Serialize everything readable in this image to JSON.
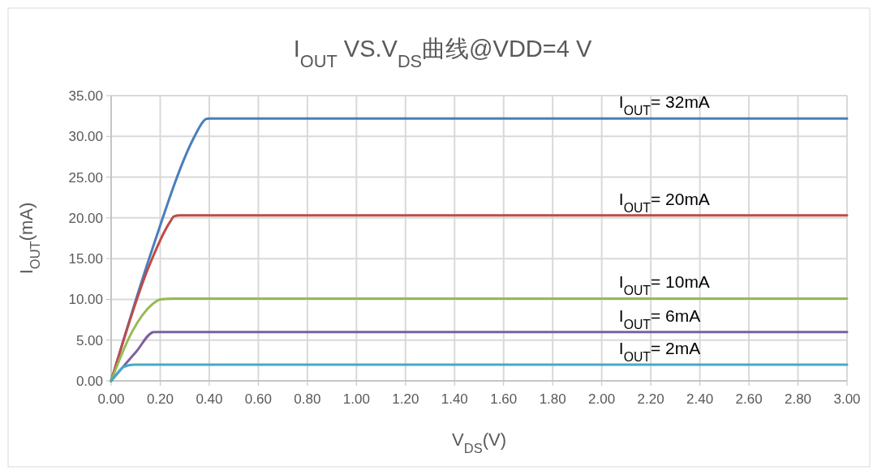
{
  "chart_data": {
    "type": "line",
    "title": "I$_{OUT}$ VS.V$_{DS}$曲线@VDD=4 V",
    "xlabel": "V$_{DS}$(V)",
    "ylabel": "I$_{OUT}$(mA)",
    "xlim": [
      0,
      3
    ],
    "ylim": [
      0,
      35
    ],
    "xticks": [
      {
        "value": 0,
        "label": "0.00"
      },
      {
        "value": 0.2,
        "label": "0.20"
      },
      {
        "value": 0.4,
        "label": "0.40"
      },
      {
        "value": 0.6,
        "label": "0.60"
      },
      {
        "value": 0.8,
        "label": "0.80"
      },
      {
        "value": 1,
        "label": "1.00"
      },
      {
        "value": 1.2,
        "label": "1.20"
      },
      {
        "value": 1.4,
        "label": "1.40"
      },
      {
        "value": 1.6,
        "label": "1.60"
      },
      {
        "value": 1.8,
        "label": "1.80"
      },
      {
        "value": 2,
        "label": "2.00"
      },
      {
        "value": 2.2,
        "label": "2.20"
      },
      {
        "value": 2.4,
        "label": "2.40"
      },
      {
        "value": 2.6,
        "label": "2.60"
      },
      {
        "value": 2.8,
        "label": "2.80"
      },
      {
        "value": 3,
        "label": "3.00"
      }
    ],
    "yticks": [
      {
        "value": 0,
        "label": "0.00"
      },
      {
        "value": 5,
        "label": "5.00"
      },
      {
        "value": 10,
        "label": "10.00"
      },
      {
        "value": 15,
        "label": "15.00"
      },
      {
        "value": 20,
        "label": "20.00"
      },
      {
        "value": 25,
        "label": "25.00"
      },
      {
        "value": 30,
        "label": "30.00"
      },
      {
        "value": 35,
        "label": "35.00"
      }
    ],
    "grid": true,
    "legend": false,
    "marker": "none",
    "line_style": "solid",
    "series": [
      {
        "name": "I$_{OUT}$= 32mA",
        "color": "#4a7ebb",
        "x": [
          0,
          0.157,
          0.34,
          0.37,
          0.385,
          0.4,
          3
        ],
        "values": [
          0,
          15.2,
          30,
          31.6,
          32.1,
          32.2,
          32.2
        ]
      },
      {
        "name": "I$_{OUT}$= 20mA",
        "color": "#be4b48",
        "x": [
          0,
          0.152,
          0.24,
          0.257,
          0.28,
          3
        ],
        "values": [
          0,
          13.9,
          19.5,
          20.2,
          20.3,
          20.3
        ]
      },
      {
        "name": "I$_{OUT}$= 10mA",
        "color": "#98b954",
        "x": [
          0,
          0.085,
          0.168,
          0.2,
          0.25,
          3
        ],
        "values": [
          0,
          6,
          9.4,
          10,
          10.1,
          10.1
        ]
      },
      {
        "name": "I$_{OUT}$= 6mA",
        "color": "#7d60a0",
        "x": [
          0,
          0.1,
          0.175,
          0.2,
          3
        ],
        "values": [
          0,
          3.5,
          6,
          6,
          6
        ]
      },
      {
        "name": "I$_{OUT}$= 2mA",
        "color": "#46aac5",
        "x": [
          0,
          0.03,
          0.05,
          0.092,
          0.2,
          3
        ],
        "values": [
          0,
          1.1,
          1.7,
          2,
          2,
          2
        ]
      }
    ]
  }
}
